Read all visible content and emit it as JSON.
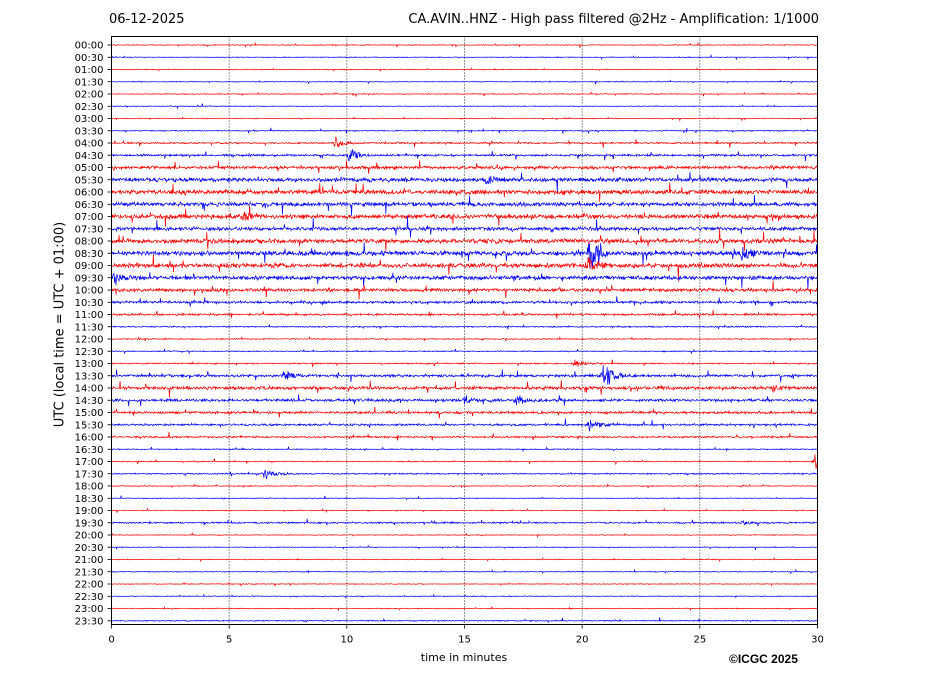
{
  "header": {
    "date": "06-12-2025",
    "title": "CA.AVIN..HNZ - High pass filtered @2Hz - Amplification: 1/1000"
  },
  "footer": {
    "copyright": "©ICGC 2025"
  },
  "chart_data": {
    "type": "line",
    "subtype": "helicorder",
    "xlabel": "time in minutes",
    "ylabel": "UTC (local time = UTC + 01:00)",
    "xlim": [
      0,
      30
    ],
    "x_ticks": [
      0,
      5,
      10,
      15,
      20,
      25,
      30
    ],
    "grid": "vertical dotted at 5-minute intervals",
    "trace_colors": [
      "#ff0000",
      "#0000ff"
    ],
    "rows": [
      "00:00",
      "00:30",
      "01:00",
      "01:30",
      "02:00",
      "02:30",
      "03:00",
      "03:30",
      "04:00",
      "04:30",
      "05:00",
      "05:30",
      "06:00",
      "06:30",
      "07:00",
      "07:30",
      "08:00",
      "08:30",
      "09:00",
      "09:30",
      "10:00",
      "10:30",
      "11:00",
      "11:30",
      "12:00",
      "12:30",
      "13:00",
      "13:30",
      "14:00",
      "14:30",
      "15:00",
      "15:30",
      "16:00",
      "16:30",
      "17:00",
      "17:30",
      "18:00",
      "18:30",
      "19:00",
      "19:30",
      "20:00",
      "20:30",
      "21:00",
      "21:30",
      "22:00",
      "22:30",
      "23:00",
      "23:30"
    ],
    "noise_levels": [
      0.3,
      0.3,
      0.3,
      0.3,
      0.3,
      0.3,
      0.3,
      0.4,
      0.6,
      0.8,
      1.2,
      1.6,
      1.8,
      1.6,
      1.8,
      1.4,
      1.8,
      1.8,
      1.8,
      1.6,
      1.3,
      1.0,
      0.8,
      0.5,
      0.4,
      0.4,
      0.5,
      1.0,
      1.3,
      1.1,
      1.0,
      0.8,
      0.7,
      0.4,
      0.4,
      0.5,
      0.3,
      0.3,
      0.3,
      0.6,
      0.3,
      0.3,
      0.3,
      0.3,
      0.3,
      0.3,
      0.3,
      0.4
    ],
    "events": [
      {
        "row": "04:00",
        "minute": 9.5,
        "amplitude": 6
      },
      {
        "row": "04:30",
        "minute": 10.1,
        "amplitude": 7
      },
      {
        "row": "05:30",
        "minute": 15.9,
        "amplitude": 4
      },
      {
        "row": "07:00",
        "minute": 5.6,
        "amplitude": 4
      },
      {
        "row": "08:30",
        "minute": 20.3,
        "amplitude": 18
      },
      {
        "row": "08:30",
        "minute": 26.8,
        "amplitude": 8
      },
      {
        "row": "09:00",
        "minute": 20.2,
        "amplitude": 8
      },
      {
        "row": "09:30",
        "minute": 0.1,
        "amplitude": 4
      },
      {
        "row": "13:00",
        "minute": 19.7,
        "amplitude": 4
      },
      {
        "row": "13:30",
        "minute": 20.9,
        "amplitude": 16
      },
      {
        "row": "13:30",
        "minute": 7.3,
        "amplitude": 5
      },
      {
        "row": "14:00",
        "minute": 28.1,
        "amplitude": 3
      },
      {
        "row": "14:30",
        "minute": 17.2,
        "amplitude": 4
      },
      {
        "row": "14:30",
        "minute": 15.0,
        "amplitude": 3
      },
      {
        "row": "15:30",
        "minute": 20.3,
        "amplitude": 5
      },
      {
        "row": "17:00",
        "minute": 29.9,
        "amplitude": 8
      },
      {
        "row": "17:30",
        "minute": 6.5,
        "amplitude": 6
      },
      {
        "row": "19:30",
        "minute": 26.8,
        "amplitude": 2
      }
    ]
  }
}
